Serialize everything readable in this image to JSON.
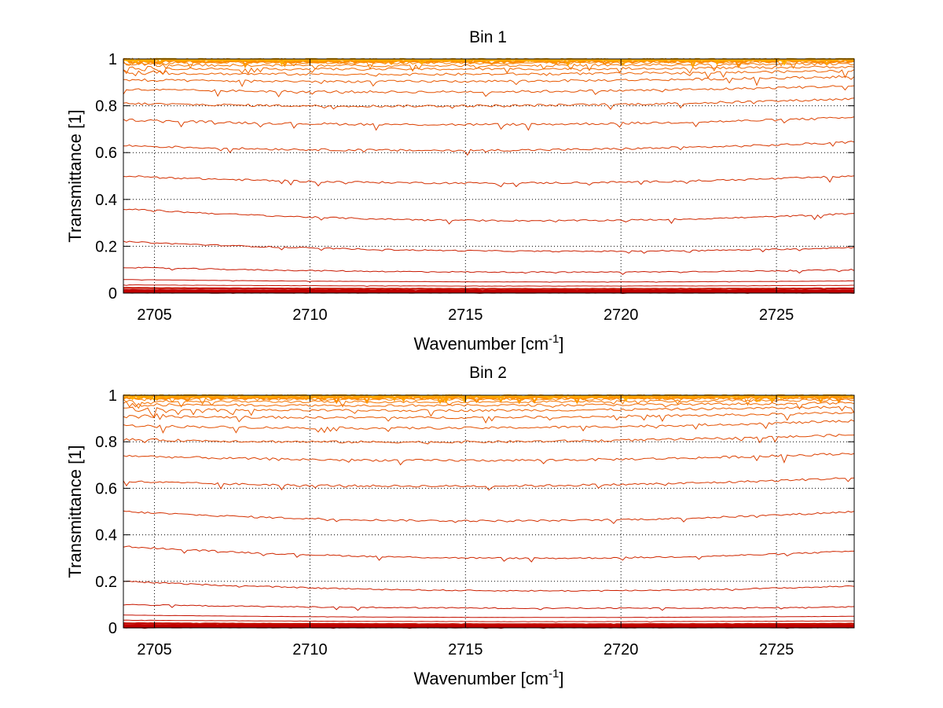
{
  "chart_data": [
    {
      "type": "line",
      "title": "Bin 1",
      "xlabel": "Wavenumber [cm",
      "xlabel_sup": "-1",
      "xlabel_close": "]",
      "ylabel": "Transmittance [1]",
      "xlim": [
        2704,
        2727.5
      ],
      "ylim": [
        0,
        1
      ],
      "xticks": [
        2705,
        2710,
        2715,
        2720,
        2725
      ],
      "yticks": [
        0,
        0.2,
        0.4,
        0.6,
        0.8,
        1
      ],
      "xtick_labels": [
        "2705",
        "2710",
        "2715",
        "2720",
        "2725"
      ],
      "ytick_labels": [
        "0",
        "0.2",
        "0.4",
        "0.6",
        "0.8",
        "1"
      ],
      "grid": true,
      "series_levels": [
        {
          "start": 0.002,
          "mid": 0.002,
          "end": 0.002,
          "color": "#c00000"
        },
        {
          "start": 0.005,
          "mid": 0.004,
          "end": 0.005,
          "color": "#c00000"
        },
        {
          "start": 0.009,
          "mid": 0.007,
          "end": 0.008,
          "color": "#c00000"
        },
        {
          "start": 0.013,
          "mid": 0.011,
          "end": 0.012,
          "color": "#c00000"
        },
        {
          "start": 0.022,
          "mid": 0.018,
          "end": 0.02,
          "color": "#c41000"
        },
        {
          "start": 0.035,
          "mid": 0.03,
          "end": 0.033,
          "color": "#c41000"
        },
        {
          "start": 0.058,
          "mid": 0.048,
          "end": 0.052,
          "color": "#c41000"
        },
        {
          "start": 0.11,
          "mid": 0.09,
          "end": 0.1,
          "color": "#c81800"
        },
        {
          "start": 0.22,
          "mid": 0.18,
          "end": 0.195,
          "color": "#cc2000"
        },
        {
          "start": 0.36,
          "mid": 0.31,
          "end": 0.34,
          "color": "#d02800"
        },
        {
          "start": 0.5,
          "mid": 0.47,
          "end": 0.5,
          "color": "#d43000"
        },
        {
          "start": 0.63,
          "mid": 0.61,
          "end": 0.645,
          "color": "#d83800"
        },
        {
          "start": 0.74,
          "mid": 0.72,
          "end": 0.75,
          "color": "#dc4000"
        },
        {
          "start": 0.81,
          "mid": 0.8,
          "end": 0.83,
          "color": "#e04800"
        },
        {
          "start": 0.87,
          "mid": 0.86,
          "end": 0.885,
          "color": "#e45000"
        },
        {
          "start": 0.91,
          "mid": 0.905,
          "end": 0.925,
          "color": "#e85800"
        },
        {
          "start": 0.94,
          "mid": 0.935,
          "end": 0.95,
          "color": "#ec6000"
        },
        {
          "start": 0.96,
          "mid": 0.957,
          "end": 0.967,
          "color": "#f06800"
        },
        {
          "start": 0.975,
          "mid": 0.972,
          "end": 0.98,
          "color": "#f47400"
        },
        {
          "start": 0.985,
          "mid": 0.983,
          "end": 0.988,
          "color": "#f88000"
        },
        {
          "start": 0.99,
          "mid": 0.989,
          "end": 0.992,
          "color": "#fc8c00"
        },
        {
          "start": 0.994,
          "mid": 0.993,
          "end": 0.995,
          "color": "#ff9800"
        },
        {
          "start": 0.997,
          "mid": 0.996,
          "end": 0.997,
          "color": "#ffa400"
        },
        {
          "start": 0.999,
          "mid": 0.998,
          "end": 0.999,
          "color": "#ffb000"
        }
      ]
    },
    {
      "type": "line",
      "title": "Bin 2",
      "xlabel": "Wavenumber [cm",
      "xlabel_sup": "-1",
      "xlabel_close": "]",
      "ylabel": "Transmittance [1]",
      "xlim": [
        2704,
        2727.5
      ],
      "ylim": [
        0,
        1
      ],
      "xticks": [
        2705,
        2710,
        2715,
        2720,
        2725
      ],
      "yticks": [
        0,
        0.2,
        0.4,
        0.6,
        0.8,
        1
      ],
      "xtick_labels": [
        "2705",
        "2710",
        "2715",
        "2720",
        "2725"
      ],
      "ytick_labels": [
        "0",
        "0.2",
        "0.4",
        "0.6",
        "0.8",
        "1"
      ],
      "grid": true,
      "series_levels": [
        {
          "start": 0.002,
          "mid": 0.002,
          "end": 0.002,
          "color": "#c00000"
        },
        {
          "start": 0.005,
          "mid": 0.004,
          "end": 0.005,
          "color": "#c00000"
        },
        {
          "start": 0.009,
          "mid": 0.007,
          "end": 0.008,
          "color": "#c00000"
        },
        {
          "start": 0.013,
          "mid": 0.011,
          "end": 0.012,
          "color": "#c00000"
        },
        {
          "start": 0.02,
          "mid": 0.016,
          "end": 0.018,
          "color": "#c41000"
        },
        {
          "start": 0.033,
          "mid": 0.027,
          "end": 0.03,
          "color": "#c41000"
        },
        {
          "start": 0.055,
          "mid": 0.045,
          "end": 0.05,
          "color": "#c41000"
        },
        {
          "start": 0.1,
          "mid": 0.085,
          "end": 0.09,
          "color": "#c81800"
        },
        {
          "start": 0.2,
          "mid": 0.16,
          "end": 0.18,
          "color": "#cc2000"
        },
        {
          "start": 0.35,
          "mid": 0.3,
          "end": 0.33,
          "color": "#d02800"
        },
        {
          "start": 0.5,
          "mid": 0.46,
          "end": 0.5,
          "color": "#d43000"
        },
        {
          "start": 0.63,
          "mid": 0.61,
          "end": 0.645,
          "color": "#d83800"
        },
        {
          "start": 0.74,
          "mid": 0.72,
          "end": 0.75,
          "color": "#dc4000"
        },
        {
          "start": 0.81,
          "mid": 0.8,
          "end": 0.83,
          "color": "#e04800"
        },
        {
          "start": 0.87,
          "mid": 0.86,
          "end": 0.89,
          "color": "#e45000"
        },
        {
          "start": 0.91,
          "mid": 0.905,
          "end": 0.925,
          "color": "#e85800"
        },
        {
          "start": 0.94,
          "mid": 0.935,
          "end": 0.95,
          "color": "#ec6000"
        },
        {
          "start": 0.96,
          "mid": 0.957,
          "end": 0.967,
          "color": "#f06800"
        },
        {
          "start": 0.975,
          "mid": 0.972,
          "end": 0.98,
          "color": "#f47400"
        },
        {
          "start": 0.985,
          "mid": 0.983,
          "end": 0.988,
          "color": "#f88000"
        },
        {
          "start": 0.99,
          "mid": 0.989,
          "end": 0.992,
          "color": "#fc8c00"
        },
        {
          "start": 0.994,
          "mid": 0.993,
          "end": 0.995,
          "color": "#ff9800"
        },
        {
          "start": 0.997,
          "mid": 0.996,
          "end": 0.997,
          "color": "#ffa400"
        },
        {
          "start": 0.999,
          "mid": 0.998,
          "end": 0.999,
          "color": "#ffb000"
        }
      ]
    }
  ]
}
